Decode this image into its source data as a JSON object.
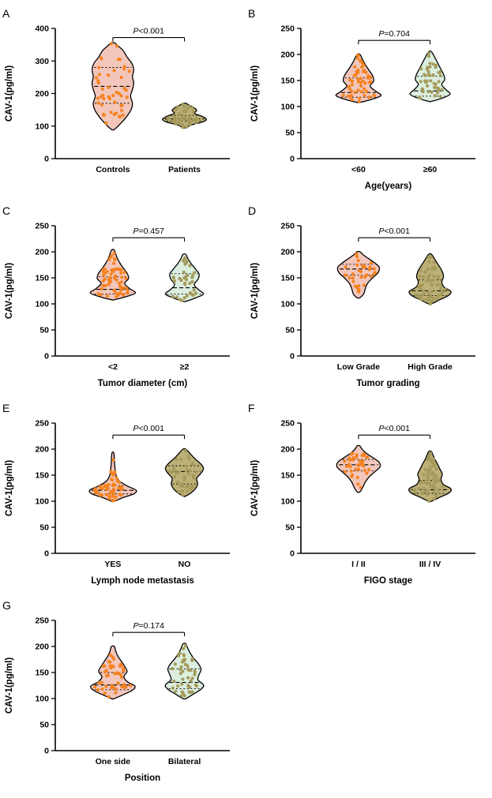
{
  "figure": {
    "background": "#ffffff",
    "text_color": "#000000"
  },
  "colors": {
    "salmon_fill": "#F2C6BA",
    "orange_dot": "#F5821F",
    "khaki_fill": "#BCB077",
    "khaki_dot": "#A59A5B",
    "mint_fill": "#DBEEDF",
    "outline": "#000000"
  },
  "chart_data": [
    {
      "type": "violin",
      "panel": "A",
      "p_label": "P<0.001",
      "ylabel": "CAV-1(pg/ml)",
      "xlabel": "",
      "ylim": [
        0,
        400
      ],
      "yticks": [
        0,
        100,
        200,
        300,
        400
      ],
      "bracket_y": 372,
      "groups": [
        {
          "label": "Controls",
          "fill": "#F2C6BA",
          "dot": "#F5821F",
          "n": 48,
          "median": 222,
          "q1": 170,
          "q3": 280,
          "shape": [
            [
              90,
              0.06
            ],
            [
              108,
              0.32
            ],
            [
              128,
              0.55
            ],
            [
              150,
              0.74
            ],
            [
              170,
              0.8
            ],
            [
              192,
              0.72
            ],
            [
              212,
              0.8
            ],
            [
              232,
              0.85
            ],
            [
              252,
              0.8
            ],
            [
              272,
              0.85
            ],
            [
              292,
              0.78
            ],
            [
              312,
              0.58
            ],
            [
              332,
              0.42
            ],
            [
              346,
              0.22
            ],
            [
              356,
              0.06
            ]
          ]
        },
        {
          "label": "Patients",
          "fill": "#BCB077",
          "dot": "#A59A5B",
          "n": 46,
          "median": 122,
          "q1": 115,
          "q3": 133,
          "shape": [
            [
              95,
              0.06
            ],
            [
              104,
              0.3
            ],
            [
              113,
              0.75
            ],
            [
              121,
              0.9
            ],
            [
              130,
              0.72
            ],
            [
              139,
              0.42
            ],
            [
              148,
              0.5
            ],
            [
              157,
              0.38
            ],
            [
              164,
              0.2
            ],
            [
              170,
              0.06
            ]
          ]
        }
      ]
    },
    {
      "type": "violin",
      "panel": "B",
      "p_label": "P=0.704",
      "ylabel": "CAV-1(pg/ml)",
      "xlabel": "Age(years)",
      "ylim": [
        0,
        250
      ],
      "yticks": [
        0,
        50,
        100,
        150,
        200,
        250
      ],
      "bracket_y": 227,
      "groups": [
        {
          "label": "<60",
          "fill": "#F2C6BA",
          "dot": "#F5821F",
          "n": 52,
          "median": 127,
          "q1": 118,
          "q3": 155,
          "shape": [
            [
              108,
              0.06
            ],
            [
              114,
              0.55
            ],
            [
              121,
              0.92
            ],
            [
              129,
              0.72
            ],
            [
              139,
              0.48
            ],
            [
              149,
              0.62
            ],
            [
              159,
              0.58
            ],
            [
              169,
              0.44
            ],
            [
              179,
              0.3
            ],
            [
              189,
              0.18
            ],
            [
              200,
              0.06
            ]
          ]
        },
        {
          "label": "≥60",
          "fill": "#DBEEDF",
          "dot": "#A59A5B",
          "n": 44,
          "median": 130,
          "q1": 120,
          "q3": 158,
          "shape": [
            [
              110,
              0.06
            ],
            [
              117,
              0.55
            ],
            [
              124,
              0.82
            ],
            [
              132,
              0.66
            ],
            [
              142,
              0.48
            ],
            [
              152,
              0.6
            ],
            [
              162,
              0.55
            ],
            [
              172,
              0.44
            ],
            [
              182,
              0.33
            ],
            [
              192,
              0.22
            ],
            [
              205,
              0.06
            ]
          ]
        }
      ]
    },
    {
      "type": "violin",
      "panel": "C",
      "p_label": "P=0.457",
      "ylabel": "CAV-1(pg/ml)",
      "xlabel": "Tumor diameter (cm)",
      "ylim": [
        0,
        250
      ],
      "yticks": [
        0,
        50,
        100,
        150,
        200,
        250
      ],
      "bracket_y": 227,
      "groups": [
        {
          "label": "<2",
          "fill": "#F2C6BA",
          "dot": "#F5821F",
          "n": 58,
          "median": 128,
          "q1": 119,
          "q3": 152,
          "shape": [
            [
              108,
              0.06
            ],
            [
              114,
              0.55
            ],
            [
              121,
              0.92
            ],
            [
              129,
              0.7
            ],
            [
              139,
              0.48
            ],
            [
              149,
              0.64
            ],
            [
              159,
              0.58
            ],
            [
              169,
              0.42
            ],
            [
              179,
              0.28
            ],
            [
              190,
              0.16
            ],
            [
              203,
              0.06
            ]
          ]
        },
        {
          "label": "≥2",
          "fill": "#DBEEDF",
          "dot": "#A59A5B",
          "n": 36,
          "median": 131,
          "q1": 119,
          "q3": 158,
          "shape": [
            [
              105,
              0.06
            ],
            [
              112,
              0.48
            ],
            [
              119,
              0.78
            ],
            [
              127,
              0.58
            ],
            [
              137,
              0.4
            ],
            [
              147,
              0.55
            ],
            [
              157,
              0.6
            ],
            [
              167,
              0.45
            ],
            [
              177,
              0.28
            ],
            [
              187,
              0.14
            ],
            [
              195,
              0.06
            ]
          ]
        }
      ]
    },
    {
      "type": "violin",
      "panel": "D",
      "p_label": "P<0.001",
      "ylabel": "CAV-1(pg/ml)",
      "xlabel": "Tumor grading",
      "ylim": [
        0,
        250
      ],
      "yticks": [
        0,
        50,
        100,
        150,
        200,
        250
      ],
      "bracket_y": 227,
      "groups": [
        {
          "label": "Low Grade",
          "fill": "#F2C6BA",
          "dot": "#F5821F",
          "n": 34,
          "median": 167,
          "q1": 155,
          "q3": 176,
          "shape": [
            [
              112,
              0.06
            ],
            [
              120,
              0.22
            ],
            [
              130,
              0.28
            ],
            [
              140,
              0.38
            ],
            [
              150,
              0.58
            ],
            [
              160,
              0.8
            ],
            [
              170,
              0.85
            ],
            [
              178,
              0.68
            ],
            [
              186,
              0.44
            ],
            [
              194,
              0.2
            ],
            [
              200,
              0.06
            ]
          ]
        },
        {
          "label": "High Grade",
          "fill": "#BCB077",
          "dot": "#A59A5B",
          "n": 60,
          "median": 125,
          "q1": 116,
          "q3": 146,
          "shape": [
            [
              100,
              0.06
            ],
            [
              108,
              0.4
            ],
            [
              116,
              0.75
            ],
            [
              124,
              0.85
            ],
            [
              132,
              0.58
            ],
            [
              142,
              0.48
            ],
            [
              152,
              0.55
            ],
            [
              162,
              0.5
            ],
            [
              172,
              0.38
            ],
            [
              182,
              0.24
            ],
            [
              195,
              0.06
            ]
          ]
        }
      ]
    },
    {
      "type": "violin",
      "panel": "E",
      "p_label": "P<0.001",
      "ylabel": "CAV-1(pg/ml)",
      "xlabel": "Lymph node metastasis",
      "ylim": [
        0,
        250
      ],
      "yticks": [
        0,
        50,
        100,
        150,
        200,
        250
      ],
      "bracket_y": 227,
      "groups": [
        {
          "label": "YES",
          "fill": "#F2C6BA",
          "dot": "#F5821F",
          "n": 58,
          "median": 121,
          "q1": 114,
          "q3": 130,
          "shape": [
            [
              100,
              0.06
            ],
            [
              107,
              0.42
            ],
            [
              114,
              0.85
            ],
            [
              121,
              0.95
            ],
            [
              129,
              0.6
            ],
            [
              138,
              0.28
            ],
            [
              148,
              0.14
            ],
            [
              158,
              0.1
            ],
            [
              172,
              0.07
            ],
            [
              192,
              0.04
            ]
          ]
        },
        {
          "label": "NO",
          "fill": "#BCB077",
          "dot": "#A59A5B",
          "n": 40,
          "median": 157,
          "q1": 133,
          "q3": 168,
          "shape": [
            [
              110,
              0.06
            ],
            [
              118,
              0.32
            ],
            [
              126,
              0.48
            ],
            [
              134,
              0.54
            ],
            [
              144,
              0.5
            ],
            [
              154,
              0.68
            ],
            [
              163,
              0.78
            ],
            [
              172,
              0.66
            ],
            [
              182,
              0.42
            ],
            [
              192,
              0.22
            ],
            [
              200,
              0.06
            ]
          ]
        }
      ]
    },
    {
      "type": "violin",
      "panel": "F",
      "p_label": "P<0.001",
      "ylabel": "CAV-1(pg/ml)",
      "xlabel": "FIGO stage",
      "ylim": [
        0,
        250
      ],
      "yticks": [
        0,
        50,
        100,
        150,
        200,
        250
      ],
      "bracket_y": 227,
      "groups": [
        {
          "label": "I / II",
          "fill": "#F2C6BA",
          "dot": "#F5821F",
          "n": 36,
          "median": 170,
          "q1": 158,
          "q3": 180,
          "shape": [
            [
              118,
              0.06
            ],
            [
              127,
              0.18
            ],
            [
              137,
              0.28
            ],
            [
              147,
              0.44
            ],
            [
              157,
              0.68
            ],
            [
              166,
              0.88
            ],
            [
              175,
              0.84
            ],
            [
              184,
              0.58
            ],
            [
              192,
              0.32
            ],
            [
              200,
              0.14
            ],
            [
              206,
              0.06
            ]
          ]
        },
        {
          "label": "III / IV",
          "fill": "#BCB077",
          "dot": "#A59A5B",
          "n": 58,
          "median": 122,
          "q1": 115,
          "q3": 140,
          "shape": [
            [
              100,
              0.06
            ],
            [
              108,
              0.42
            ],
            [
              116,
              0.78
            ],
            [
              124,
              0.85
            ],
            [
              132,
              0.55
            ],
            [
              142,
              0.45
            ],
            [
              152,
              0.5
            ],
            [
              162,
              0.4
            ],
            [
              172,
              0.3
            ],
            [
              182,
              0.18
            ],
            [
              195,
              0.06
            ]
          ]
        }
      ]
    },
    {
      "type": "violin",
      "panel": "G",
      "p_label": "P=0.174",
      "ylabel": "CAV-1(pg/ml)",
      "xlabel": "Position",
      "ylim": [
        0,
        250
      ],
      "yticks": [
        0,
        50,
        100,
        150,
        200,
        250
      ],
      "bracket_y": 227,
      "groups": [
        {
          "label": "One side",
          "fill": "#F2C6BA",
          "dot": "#F5821F",
          "n": 46,
          "median": 126,
          "q1": 117,
          "q3": 150,
          "shape": [
            [
              100,
              0.06
            ],
            [
              108,
              0.45
            ],
            [
              116,
              0.8
            ],
            [
              124,
              0.9
            ],
            [
              132,
              0.6
            ],
            [
              142,
              0.45
            ],
            [
              152,
              0.58
            ],
            [
              162,
              0.48
            ],
            [
              172,
              0.34
            ],
            [
              182,
              0.2
            ],
            [
              192,
              0.11
            ],
            [
              200,
              0.06
            ]
          ]
        },
        {
          "label": "Bilateral",
          "fill": "#DBEEDF",
          "dot": "#A59A5B",
          "n": 48,
          "median": 131,
          "q1": 119,
          "q3": 157,
          "shape": [
            [
              100,
              0.06
            ],
            [
              109,
              0.38
            ],
            [
              118,
              0.68
            ],
            [
              126,
              0.78
            ],
            [
              136,
              0.55
            ],
            [
              146,
              0.6
            ],
            [
              156,
              0.68
            ],
            [
              166,
              0.58
            ],
            [
              176,
              0.4
            ],
            [
              186,
              0.25
            ],
            [
              196,
              0.14
            ],
            [
              205,
              0.06
            ]
          ]
        }
      ]
    }
  ]
}
